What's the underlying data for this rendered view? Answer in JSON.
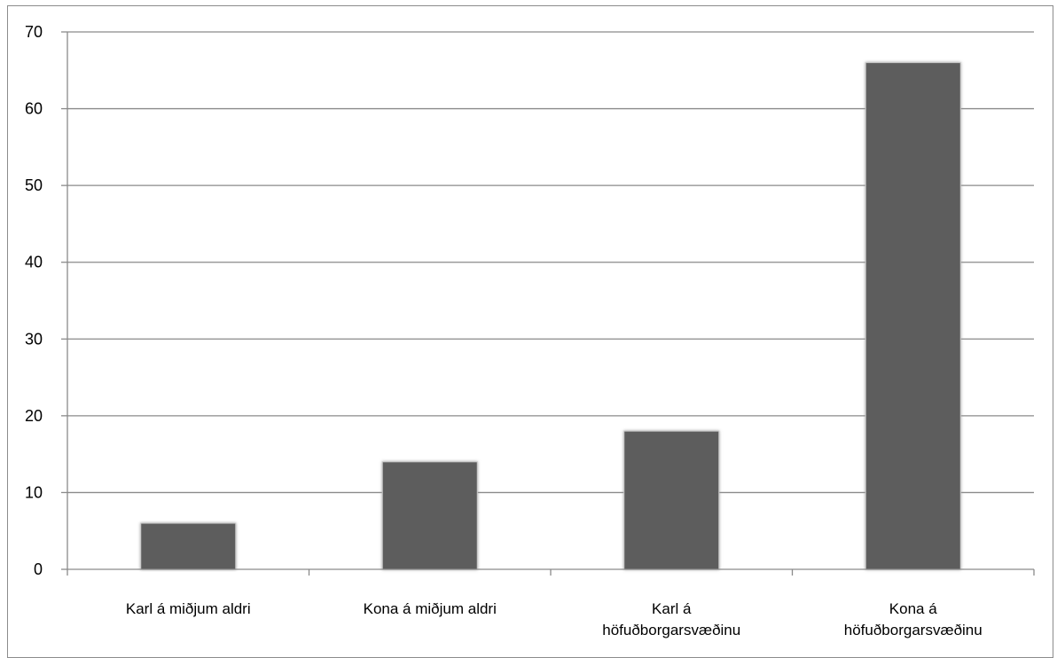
{
  "colors": {
    "bar": "#5d5d5d",
    "bar_edge": "#c8c8c8",
    "gridline": "#8a8a8a",
    "axis": "#8a8a8a",
    "border": "#8c8c8c"
  },
  "chart_data": {
    "type": "bar",
    "title": "",
    "xlabel": "",
    "ylabel": "",
    "categories": [
      [
        "Karl á miðjum aldri"
      ],
      [
        "Kona á miðjum aldri"
      ],
      [
        "Karl á",
        "höfuðborgarsvæðinu"
      ],
      [
        "Kona á",
        "höfuðborgarsvæðinu"
      ]
    ],
    "values": [
      6,
      14,
      18,
      66
    ],
    "ylim": [
      0,
      70
    ],
    "yticks": [
      0,
      10,
      20,
      30,
      40,
      50,
      60,
      70
    ],
    "grid": true,
    "legend": "none"
  }
}
